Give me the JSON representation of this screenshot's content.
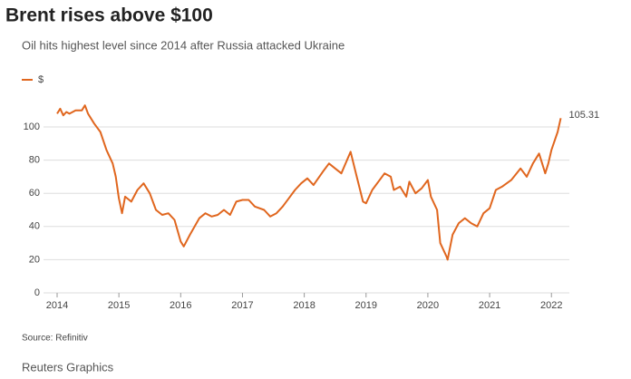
{
  "chart_data": {
    "type": "line",
    "title": "Brent rises above $100",
    "subtitle": "Oil hits highest level since 2014 after Russia attacked Ukraine",
    "source": "Source: Refinitiv",
    "credit": "Reuters Graphics",
    "x": [
      2014.0,
      2014.05,
      2014.1,
      2014.15,
      2014.2,
      2014.3,
      2014.4,
      2014.45,
      2014.5,
      2014.6,
      2014.7,
      2014.8,
      2014.9,
      2014.95,
      2015.0,
      2015.05,
      2015.1,
      2015.2,
      2015.3,
      2015.4,
      2015.5,
      2015.6,
      2015.7,
      2015.8,
      2015.9,
      2016.0,
      2016.05,
      2016.15,
      2016.3,
      2016.4,
      2016.5,
      2016.6,
      2016.7,
      2016.8,
      2016.9,
      2017.0,
      2017.1,
      2017.2,
      2017.35,
      2017.45,
      2017.55,
      2017.65,
      2017.75,
      2017.85,
      2017.95,
      2018.05,
      2018.15,
      2018.3,
      2018.4,
      2018.5,
      2018.6,
      2018.75,
      2018.85,
      2018.95,
      2019.0,
      2019.1,
      2019.3,
      2019.4,
      2019.45,
      2019.55,
      2019.65,
      2019.7,
      2019.8,
      2019.9,
      2020.0,
      2020.05,
      2020.15,
      2020.2,
      2020.3,
      2020.32,
      2020.4,
      2020.5,
      2020.6,
      2020.7,
      2020.8,
      2020.9,
      2021.0,
      2021.1,
      2021.2,
      2021.35,
      2021.5,
      2021.6,
      2021.7,
      2021.8,
      2021.9,
      2021.95,
      2022.0,
      2022.1,
      2022.15
    ],
    "series": [
      {
        "name": "$",
        "color": "#e0661e",
        "values": [
          108,
          111,
          107,
          109,
          108,
          110,
          110,
          113,
          108,
          102,
          97,
          86,
          78,
          70,
          57,
          48,
          58,
          55,
          62,
          66,
          60,
          50,
          47,
          48,
          44,
          31,
          28,
          35,
          45,
          48,
          46,
          47,
          50,
          47,
          55,
          56,
          56,
          52,
          50,
          46,
          48,
          52,
          57,
          62,
          66,
          69,
          65,
          73,
          78,
          75,
          72,
          85,
          70,
          55,
          54,
          62,
          72,
          70,
          62,
          64,
          58,
          67,
          60,
          63,
          68,
          58,
          50,
          30,
          22,
          20,
          35,
          42,
          45,
          42,
          40,
          48,
          51,
          62,
          64,
          68,
          75,
          70,
          78,
          84,
          72,
          78,
          86,
          97,
          105.31
        ]
      }
    ],
    "xlim": [
      2013.78,
      2022.29
    ],
    "xticks": [
      2014,
      2015,
      2016,
      2017,
      2018,
      2019,
      2020,
      2021,
      2022
    ],
    "ylim": [
      0,
      120
    ],
    "yticks": [
      0,
      20,
      40,
      60,
      80,
      100
    ],
    "grid": true
  }
}
